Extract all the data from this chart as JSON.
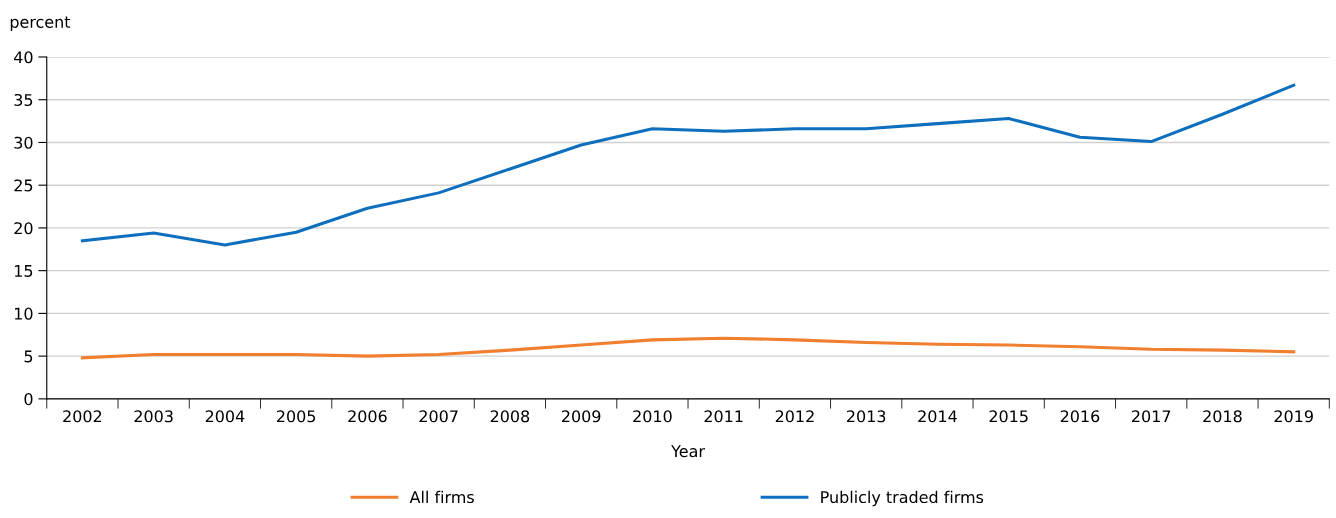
{
  "chart_data": {
    "type": "line",
    "ylabel": "percent",
    "xlabel": "Year",
    "categories": [
      "2002",
      "2003",
      "2004",
      "2005",
      "2006",
      "2007",
      "2008",
      "2009",
      "2010",
      "2011",
      "2012",
      "2013",
      "2014",
      "2015",
      "2016",
      "2017",
      "2018",
      "2019"
    ],
    "series": [
      {
        "name": "All firms",
        "color": "#f07f2f",
        "values": [
          4.8,
          5.2,
          5.2,
          5.2,
          5.0,
          5.2,
          5.7,
          6.3,
          6.9,
          7.1,
          6.9,
          6.6,
          6.4,
          6.3,
          6.1,
          5.8,
          5.7,
          5.5
        ]
      },
      {
        "name": "Publicly traded firms",
        "color": "#0f6fbf",
        "values": [
          18.5,
          19.4,
          18.0,
          19.5,
          22.3,
          24.1,
          26.9,
          29.7,
          31.6,
          31.3,
          31.6,
          31.6,
          32.2,
          32.8,
          30.6,
          30.1,
          33.3,
          36.7
        ]
      }
    ],
    "ylim": [
      0,
      40
    ],
    "yticks": [
      0,
      5,
      10,
      15,
      20,
      25,
      30,
      35,
      40
    ],
    "grid": "y",
    "legend": "bottom",
    "marker": "none",
    "line_style": "solid"
  }
}
